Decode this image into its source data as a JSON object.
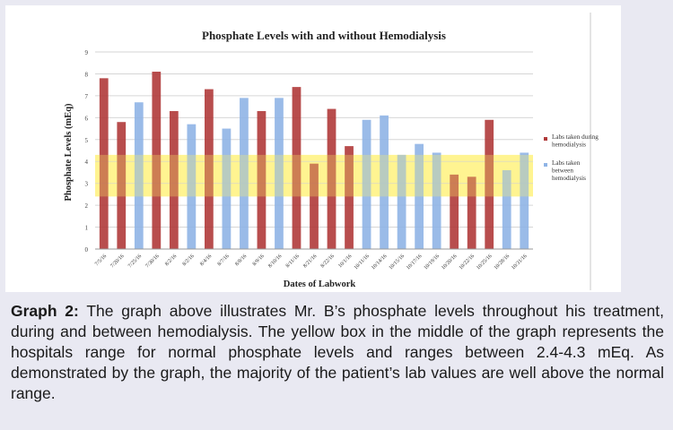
{
  "chart_data": {
    "type": "bar",
    "title": "Phosphate Levels with and without Hemodialysis",
    "xlabel": "Dates of Labwork",
    "ylabel": "Phosphate Levels (mEq)",
    "ylim": [
      0,
      9
    ],
    "yticks": [
      "0",
      "1",
      "2",
      "3",
      "4",
      "5",
      "6",
      "7",
      "8",
      "9"
    ],
    "normal_range": [
      2.4,
      4.3
    ],
    "categories": [
      "7/5/16",
      "7/20/16",
      "7/25/16",
      "7/30/16",
      "8/2/16",
      "8/2/16",
      "8/4/16",
      "8/7/16",
      "8/8/16",
      "8/9/16",
      "8/10/16",
      "8/11/16",
      "8/21/16",
      "8/22/16",
      "10/1/16",
      "10/11/16",
      "10/14/16",
      "10/15/16",
      "10/17/16",
      "10/19/16",
      "10/20/16",
      "10/22/16",
      "10/25/16",
      "10/28/16",
      "10/31/16"
    ],
    "series": [
      {
        "name": "Labs taken during hemodialysis",
        "color": "#b03a3a",
        "values": [
          7.8,
          5.8,
          null,
          8.1,
          6.3,
          null,
          7.3,
          null,
          null,
          6.3,
          null,
          7.4,
          3.9,
          6.4,
          4.7,
          null,
          null,
          null,
          null,
          null,
          3.4,
          3.3,
          5.9,
          null,
          null
        ]
      },
      {
        "name": "Labs taken between hemodialysis",
        "color": "#8fb4e6",
        "values": [
          null,
          null,
          6.7,
          null,
          null,
          5.7,
          null,
          5.5,
          6.9,
          null,
          6.9,
          null,
          null,
          null,
          null,
          5.9,
          6.1,
          4.3,
          4.8,
          4.4,
          null,
          null,
          null,
          3.6,
          4.4
        ]
      }
    ],
    "legend_position": "right",
    "band_color": "#fff27a"
  },
  "caption": {
    "label": "Graph 2:",
    "text": "The graph above illustrates Mr. B’s phosphate levels throughout his treatment, during and between hemodialysis. The yellow box in the middle of the graph represents the hospitals range for normal phosphate levels and ranges between 2.4-4.3 mEq. As demonstrated by the graph, the majority of the patient’s lab values are well above the normal range."
  }
}
